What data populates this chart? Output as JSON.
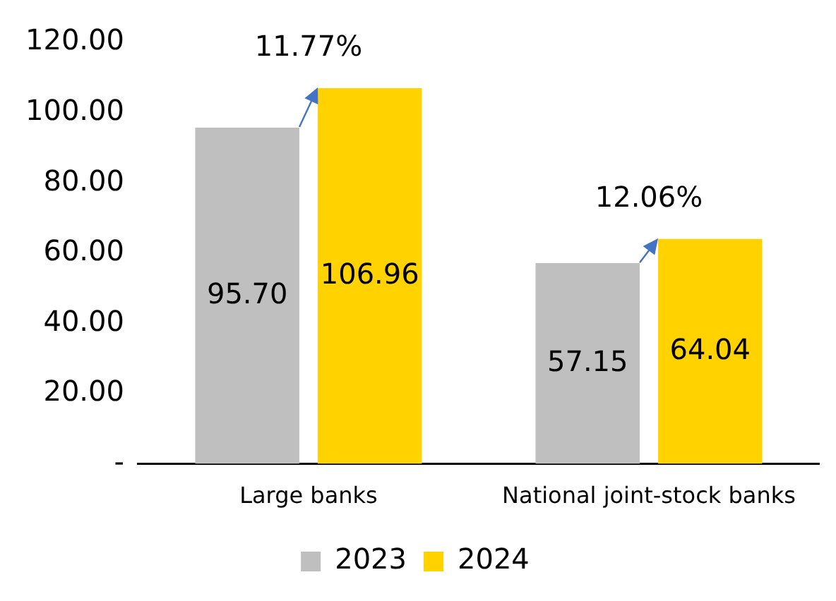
{
  "chart_data": {
    "type": "bar",
    "categories": [
      "Large banks",
      "National joint-stock banks"
    ],
    "series": [
      {
        "name": "2023",
        "color": "#bfbfbf",
        "values": [
          95.7,
          57.15
        ],
        "value_labels": [
          "95.70",
          "57.15"
        ]
      },
      {
        "name": "2024",
        "color": "#ffd200",
        "values": [
          106.96,
          64.04
        ],
        "value_labels": [
          "106.96",
          "64.04"
        ]
      }
    ],
    "ylim": [
      0,
      120
    ],
    "yticks": [
      {
        "value": 0,
        "label": "-"
      },
      {
        "value": 20,
        "label": "20.00"
      },
      {
        "value": 40,
        "label": "40.00"
      },
      {
        "value": 60,
        "label": "60.00"
      },
      {
        "value": 80,
        "label": "80.00"
      },
      {
        "value": 100,
        "label": "100.00"
      },
      {
        "value": 120,
        "label": "120.00"
      }
    ],
    "grid": false,
    "legend": "bottom",
    "annotations": [
      "11.77%",
      "12.06%"
    ]
  }
}
